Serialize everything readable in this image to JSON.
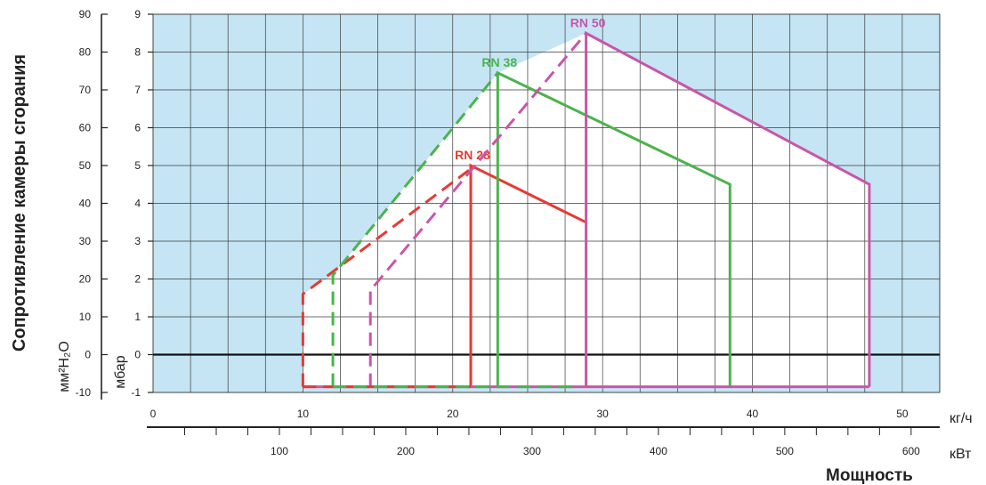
{
  "chart_data": {
    "type": "line",
    "title": "",
    "ylabel": "Сопротивление камеры сгорания",
    "xlabel": "Мощность",
    "x_unit": "кг/ч",
    "x2_unit": "кВт",
    "y_unit_mm": "мм²H₂O",
    "y_unit_mbar": "мбар",
    "xlim": [
      0,
      52.5
    ],
    "ylim_mbar": [
      -1,
      9
    ],
    "x_ticks": [
      0,
      10,
      20,
      30,
      40,
      50
    ],
    "y_ticks_mbar": [
      -1,
      0,
      1,
      2,
      3,
      4,
      5,
      6,
      7,
      8,
      9
    ],
    "y_ticks_mm": [
      -10,
      0,
      10,
      20,
      30,
      40,
      50,
      60,
      70,
      80,
      90
    ],
    "x2_ticks_kw": [
      100,
      200,
      300,
      400,
      500,
      600
    ],
    "x2_kw_per_kgh": 11.86,
    "grid": true,
    "background_color": "#c5e5f4",
    "field_color": "#ffffff",
    "series": [
      {
        "name": "RN 28",
        "color": "#e53a33",
        "dashed": [
          [
            10,
            -0.85
          ],
          [
            10,
            1.6
          ],
          [
            21.5,
            5.0
          ]
        ],
        "solid": [
          [
            21.2,
            -0.85
          ],
          [
            21.2,
            5.0
          ],
          [
            28.9,
            3.5
          ]
        ],
        "base_from": 10
      },
      {
        "name": "RN 38",
        "color": "#4bb34c",
        "dashed": [
          [
            12,
            -0.85
          ],
          [
            12,
            2.1
          ],
          [
            23,
            7.45
          ]
        ],
        "solid": [
          [
            23,
            -0.85
          ],
          [
            23,
            7.45
          ],
          [
            38.5,
            4.5
          ],
          [
            38.5,
            -0.85
          ]
        ],
        "base_from": 12
      },
      {
        "name": "RN 50",
        "color": "#c955a9",
        "dashed": [
          [
            14.5,
            -0.85
          ],
          [
            14.5,
            1.7
          ],
          [
            28.9,
            8.5
          ]
        ],
        "solid": [
          [
            28.9,
            -0.85
          ],
          [
            28.9,
            8.5
          ],
          [
            47.8,
            4.5
          ],
          [
            47.8,
            -0.85
          ]
        ],
        "base_from": 14.5
      }
    ]
  }
}
